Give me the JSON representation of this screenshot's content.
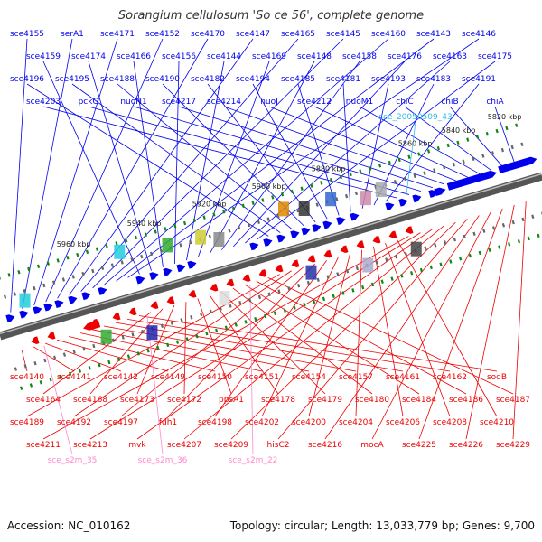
{
  "title": "Sorangium cellulosum 'So ce 56', complete genome",
  "accession": "Accession: NC_010162",
  "summary": "Topology: circular; Length: 13,033,779 bp; Genes: 9,700",
  "colors": {
    "forward": "#0000ee",
    "reverse": "#ee0000",
    "rna": "#ff88cc",
    "highlight": "#33bbee",
    "backbone": "#555555",
    "tick": "#118811"
  },
  "scale_labels": [
    "5820 kbp",
    "5840 kbp",
    "5860 kbp",
    "5880 kbp",
    "5900 kbp",
    "5920 kbp",
    "5940 kbp",
    "5960 kbp"
  ],
  "forward_labels": [
    "sce4155",
    "serA1",
    "sce4171",
    "sce4152",
    "sce4170",
    "sce4147",
    "sce4165",
    "sce4145",
    "sce4160",
    "sce4143",
    "sce4146",
    "sce4159",
    "sce4174",
    "sce4166",
    "sce4156",
    "sce4144",
    "sce4169",
    "sce4148",
    "sce4158",
    "sce4176",
    "sce4163",
    "sce4175",
    "sce4196",
    "sce4195",
    "sce4188",
    "sce4190",
    "sce4182",
    "sce4194",
    "sce4185",
    "sce4181",
    "sce4193",
    "sce4183",
    "sce4191",
    "sce4203",
    "pckG",
    "nuoN1",
    "sce4217",
    "sce4214",
    "nuoJ",
    "sce4212",
    "nuoM1",
    "chiC",
    "chiB",
    "chiA"
  ],
  "highlight_labels": [
    "sce_20050509_43"
  ],
  "reverse_labels": [
    "sce4140",
    "sce4141",
    "sce4142",
    "sce4149",
    "sce4150",
    "sce4151",
    "sce4154",
    "sce4157",
    "sce4161",
    "sce4162",
    "sodB",
    "sce4164",
    "sce4168",
    "sce4173",
    "sce4172",
    "ppsA1",
    "sce4178",
    "sce4179",
    "sce4180",
    "sce4184",
    "sce4186",
    "sce4187",
    "sce4189",
    "sce4192",
    "sce4197",
    "fdh1",
    "sce4198",
    "sce4202",
    "sce4200",
    "sce4204",
    "sce4206",
    "sce4208",
    "sce4210",
    "sce4211",
    "sce4213",
    "mvk",
    "sce4207",
    "sce4209",
    "hisC2",
    "sce4216",
    "mocA",
    "sce4225",
    "sce4226",
    "sce4229"
  ],
  "rna_labels": [
    "sce_s2m_35",
    "sce_s2m_36",
    "sce_s2m_22"
  ]
}
